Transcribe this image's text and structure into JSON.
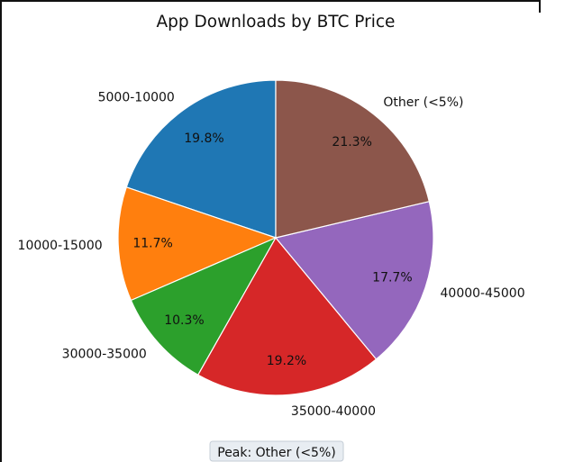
{
  "chart_data": {
    "type": "pie",
    "title": "App Downloads by BTC Price",
    "slices": [
      {
        "label": "5000-10000",
        "pct_label": "19.8%",
        "value": 19.8,
        "color": "#1f77b4"
      },
      {
        "label": "10000-15000",
        "pct_label": "11.7%",
        "value": 11.7,
        "color": "#ff7f0e"
      },
      {
        "label": "30000-35000",
        "pct_label": "10.3%",
        "value": 10.3,
        "color": "#2ca02c"
      },
      {
        "label": "35000-40000",
        "pct_label": "19.2%",
        "value": 19.2,
        "color": "#d62728"
      },
      {
        "label": "40000-45000",
        "pct_label": "17.7%",
        "value": 17.7,
        "color": "#9467bd"
      },
      {
        "label": "Other (<5%)",
        "pct_label": "21.3%",
        "value": 21.3,
        "color": "#8c564b"
      }
    ],
    "annotation": "Peak: Other (<5%)"
  }
}
